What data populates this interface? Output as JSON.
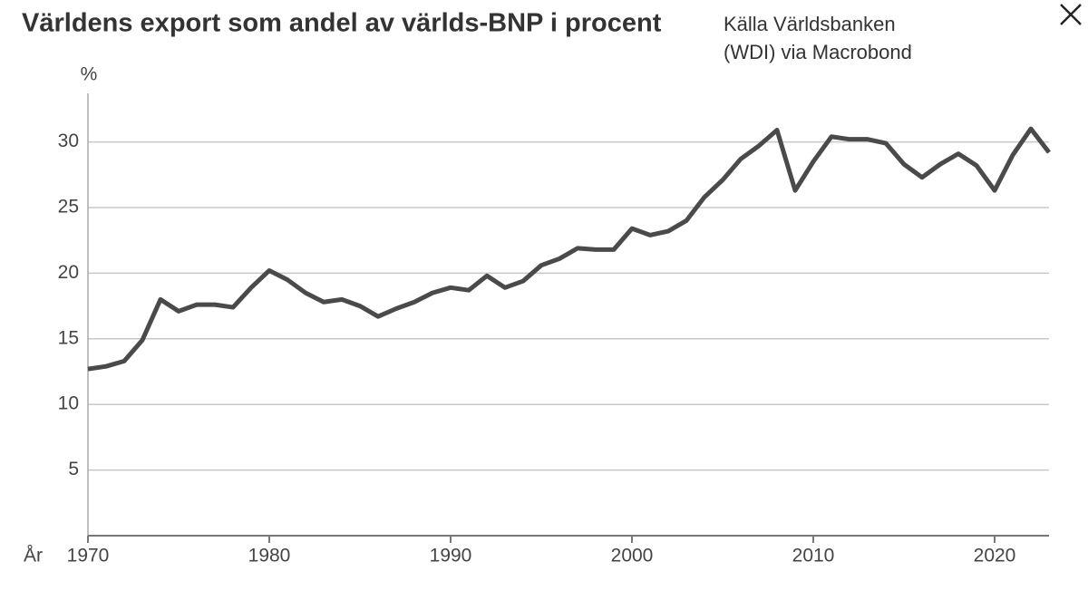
{
  "chart_data": {
    "type": "line",
    "title": "Världens export som andel av världs-BNP i procent",
    "source": [
      "Källa Världsbanken",
      "(WDI) via Macrobond"
    ],
    "y_label": "%",
    "x_label": "År",
    "x": [
      1970,
      1971,
      1972,
      1973,
      1974,
      1975,
      1976,
      1977,
      1978,
      1979,
      1980,
      1981,
      1982,
      1983,
      1984,
      1985,
      1986,
      1987,
      1988,
      1989,
      1990,
      1991,
      1992,
      1993,
      1994,
      1995,
      1996,
      1997,
      1998,
      1999,
      2000,
      2001,
      2002,
      2003,
      2004,
      2005,
      2006,
      2007,
      2008,
      2009,
      2010,
      2011,
      2012,
      2013,
      2014,
      2015,
      2016,
      2017,
      2018,
      2019,
      2020,
      2021,
      2022,
      2023
    ],
    "values": [
      12.7,
      12.9,
      13.3,
      14.9,
      18.0,
      17.1,
      17.6,
      17.6,
      17.4,
      18.9,
      20.2,
      19.5,
      18.5,
      17.8,
      18.0,
      17.5,
      16.7,
      17.3,
      17.8,
      18.5,
      18.9,
      18.7,
      19.8,
      18.9,
      19.4,
      20.6,
      21.1,
      21.9,
      21.8,
      21.8,
      23.4,
      22.9,
      23.2,
      24.0,
      25.8,
      27.1,
      28.7,
      29.7,
      30.9,
      26.3,
      28.5,
      30.4,
      30.2,
      30.2,
      29.9,
      28.3,
      27.3,
      28.3,
      29.1,
      28.2,
      26.3,
      29.0,
      31.0,
      29.2
    ],
    "color": "#4a4a4a",
    "xlim": [
      1970,
      2023
    ],
    "xticks": [
      1970,
      1980,
      1990,
      2000,
      2010,
      2020
    ],
    "ylim": [
      0,
      33.7
    ],
    "yticks": [
      5,
      10,
      15,
      20,
      25,
      30
    ],
    "grid": true
  }
}
